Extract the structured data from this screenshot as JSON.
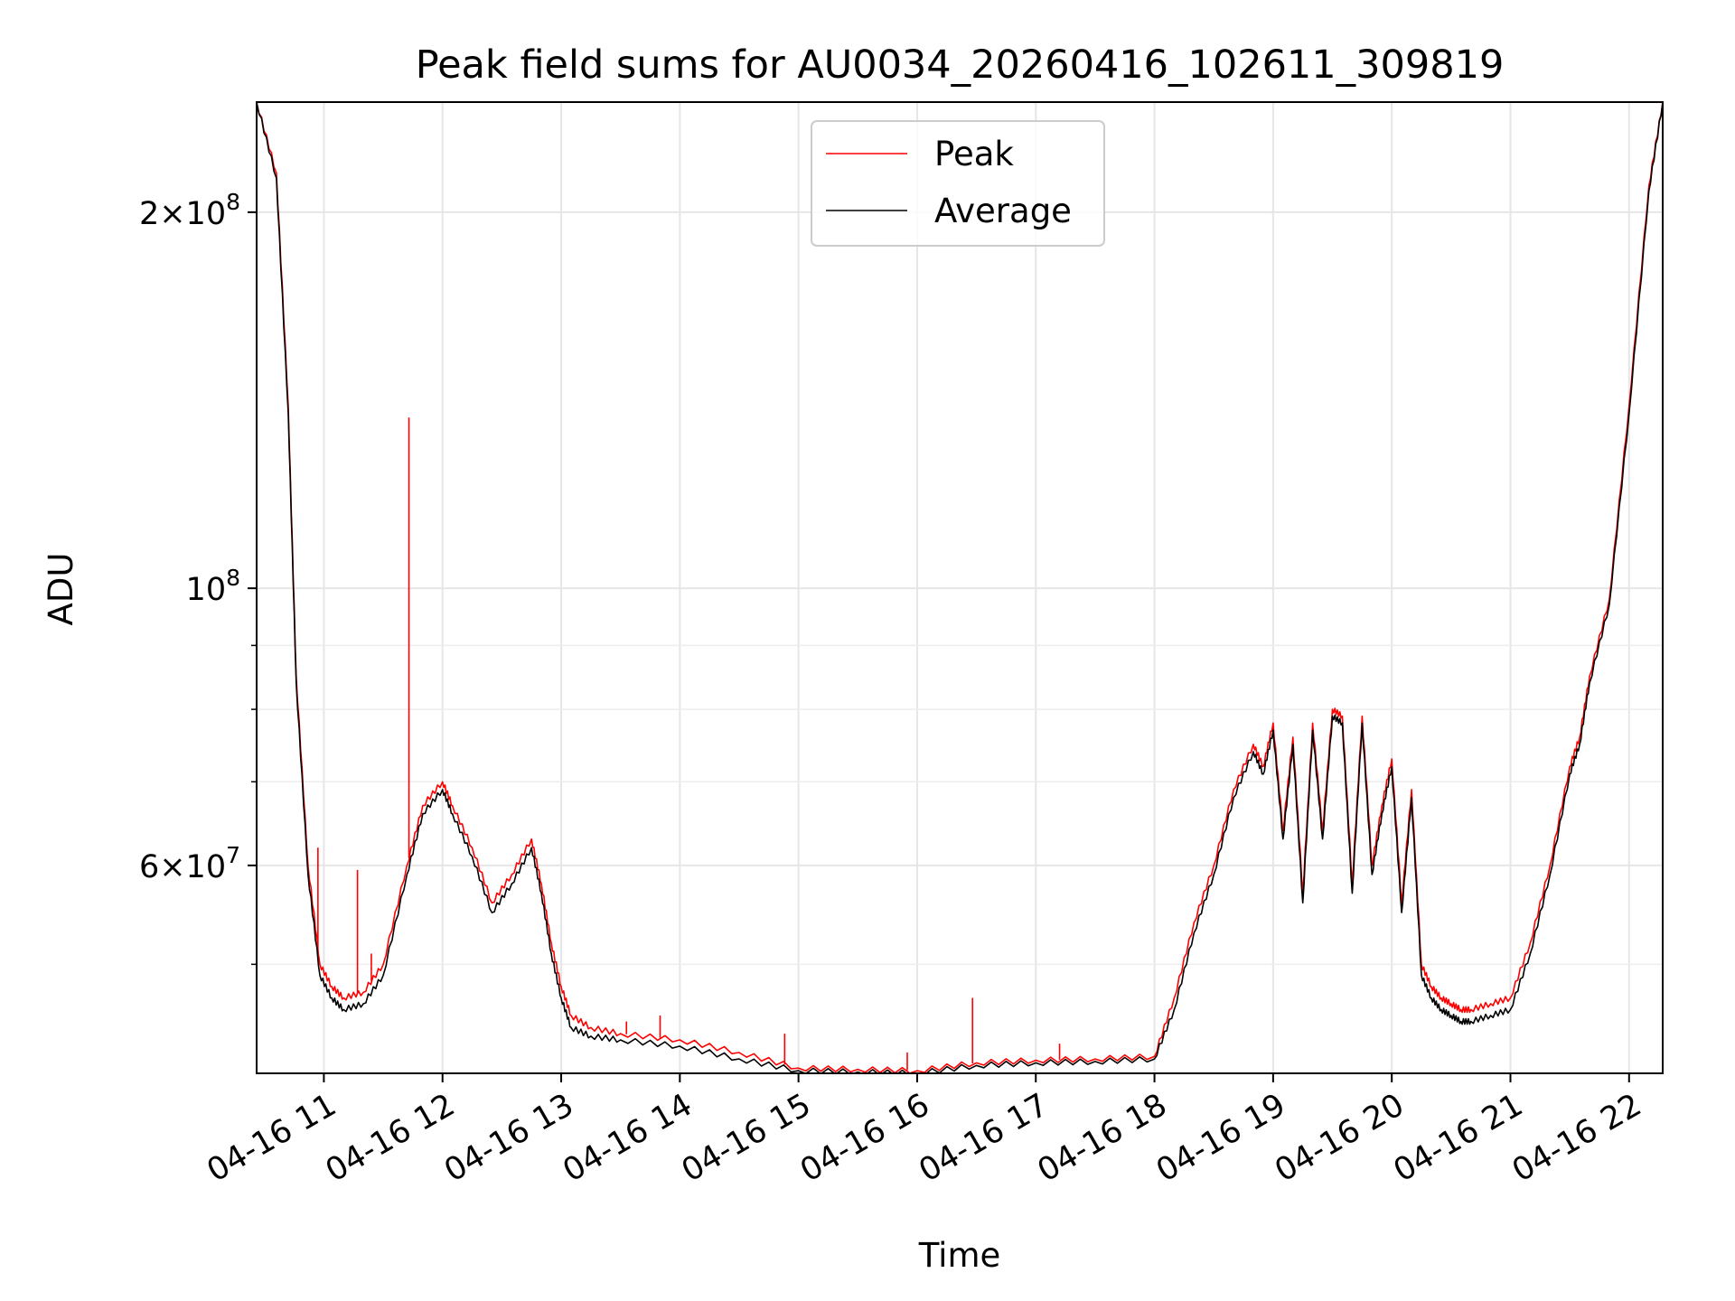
{
  "chart_data": {
    "type": "line",
    "title": "Peak field sums for AU0034_20260416_102611_309819",
    "xlabel": "Time",
    "ylabel": "ADU",
    "yscale": "log",
    "xlim": [
      "04-16 10:26",
      "04-16 22:17"
    ],
    "ylim": [
      40900000,
      245000000
    ],
    "grid": true,
    "legend_placement": "upper center",
    "x_ticks": [
      "04-16 11",
      "04-16 12",
      "04-16 13",
      "04-16 14",
      "04-16 15",
      "04-16 16",
      "04-16 17",
      "04-16 18",
      "04-16 19",
      "04-16 20",
      "04-16 21",
      "04-16 22"
    ],
    "y_ticks": [
      {
        "value": 200000000,
        "mant": "2",
        "exp": "8"
      },
      {
        "value": 100000000,
        "mant": "",
        "exp": "8"
      },
      {
        "value": 60000000,
        "mant": "6",
        "exp": "7"
      }
    ],
    "y_minor_ticks": [
      50000000,
      70000000,
      80000000,
      90000000
    ],
    "x_time": [
      "04-16 10:26",
      "04-16 10:36",
      "04-16 10:42",
      "04-16 10:46",
      "04-16 10:52",
      "04-16 10:58",
      "04-16 11:04",
      "04-16 11:10",
      "04-16 11:20",
      "04-16 11:30",
      "04-16 11:42",
      "04-16 11:50",
      "04-16 12:00",
      "04-16 12:05",
      "04-16 12:15",
      "04-16 12:25",
      "04-16 12:35",
      "04-16 12:45",
      "04-16 12:50",
      "04-16 12:55",
      "04-16 13:00",
      "04-16 13:05",
      "04-16 13:15",
      "04-16 13:30",
      "04-16 14:00",
      "04-16 14:30",
      "04-16 15:00",
      "04-16 15:30",
      "04-16 16:00",
      "04-16 16:30",
      "04-16 17:00",
      "04-16 17:30",
      "04-16 18:00",
      "04-16 18:10",
      "04-16 18:20",
      "04-16 18:30",
      "04-16 18:40",
      "04-16 18:50",
      "04-16 18:55",
      "04-16 19:00",
      "04-16 19:05",
      "04-16 19:10",
      "04-16 19:15",
      "04-16 19:20",
      "04-16 19:25",
      "04-16 19:30",
      "04-16 19:35",
      "04-16 19:40",
      "04-16 19:45",
      "04-16 19:50",
      "04-16 19:55",
      "04-16 20:00",
      "04-16 20:05",
      "04-16 20:10",
      "04-16 20:15",
      "04-16 20:20",
      "04-16 20:25",
      "04-16 20:30",
      "04-16 20:35",
      "04-16 20:40",
      "04-16 20:50",
      "04-16 21:00",
      "04-16 21:10",
      "04-16 21:20",
      "04-16 21:30",
      "04-16 21:35",
      "04-16 21:40",
      "04-16 21:50",
      "04-16 22:00",
      "04-16 22:10",
      "04-16 22:17"
    ],
    "series": [
      {
        "name": "Peak",
        "color": "#ff0000",
        "values": [
          245000000,
          215000000,
          140000000,
          85000000,
          60000000,
          50000000,
          48000000,
          47000000,
          47500000,
          50000000,
          60000000,
          67000000,
          70000000,
          67000000,
          62000000,
          56000000,
          59000000,
          63000000,
          58000000,
          52000000,
          48000000,
          45500000,
          44500000,
          44000000,
          43500000,
          42500000,
          41300000,
          41200000,
          41100000,
          41700000,
          41900000,
          42000000,
          42200000,
          47000000,
          54000000,
          60000000,
          69000000,
          75000000,
          72000000,
          78000000,
          64000000,
          76000000,
          57000000,
          78000000,
          64000000,
          80000000,
          79000000,
          58000000,
          79000000,
          60000000,
          67000000,
          73000000,
          56000000,
          69000000,
          50000000,
          48000000,
          47000000,
          46500000,
          46000000,
          46000000,
          46500000,
          47000000,
          52000000,
          60000000,
          72000000,
          76000000,
          85000000,
          98000000,
          140000000,
          210000000,
          245000000
        ],
        "spikes": [
          {
            "x": "04-16 10:57",
            "y": 62000000
          },
          {
            "x": "04-16 11:17",
            "y": 59500000
          },
          {
            "x": "04-16 11:24",
            "y": 51000000
          },
          {
            "x": "04-16 11:43",
            "y": 137000000
          },
          {
            "x": "04-16 13:33",
            "y": 45000000
          },
          {
            "x": "04-16 13:50",
            "y": 45500000
          },
          {
            "x": "04-16 14:53",
            "y": 44000000
          },
          {
            "x": "04-16 15:55",
            "y": 42500000
          },
          {
            "x": "04-16 16:28",
            "y": 47000000
          },
          {
            "x": "04-16 17:12",
            "y": 43200000
          }
        ]
      },
      {
        "name": "Average",
        "color": "#000000",
        "values": [
          245000000,
          213000000,
          138000000,
          84000000,
          59000000,
          49000000,
          47000000,
          46000000,
          46500000,
          49000000,
          59000000,
          66000000,
          69000000,
          66000000,
          61000000,
          55000000,
          58000000,
          62000000,
          57000000,
          51000000,
          47000000,
          44500000,
          43800000,
          43500000,
          43000000,
          42000000,
          41100000,
          41000000,
          40900000,
          41500000,
          41700000,
          41800000,
          42000000,
          46000000,
          53000000,
          59000000,
          68000000,
          74000000,
          71000000,
          77000000,
          63000000,
          75000000,
          56000000,
          77000000,
          63000000,
          79000000,
          78000000,
          57000000,
          78000000,
          59000000,
          66000000,
          72000000,
          55000000,
          68000000,
          49000000,
          47000000,
          46000000,
          45500000,
          45000000,
          45000000,
          45500000,
          46000000,
          51000000,
          59000000,
          71000000,
          75000000,
          84000000,
          97000000,
          138000000,
          208000000,
          245000000
        ]
      }
    ]
  }
}
